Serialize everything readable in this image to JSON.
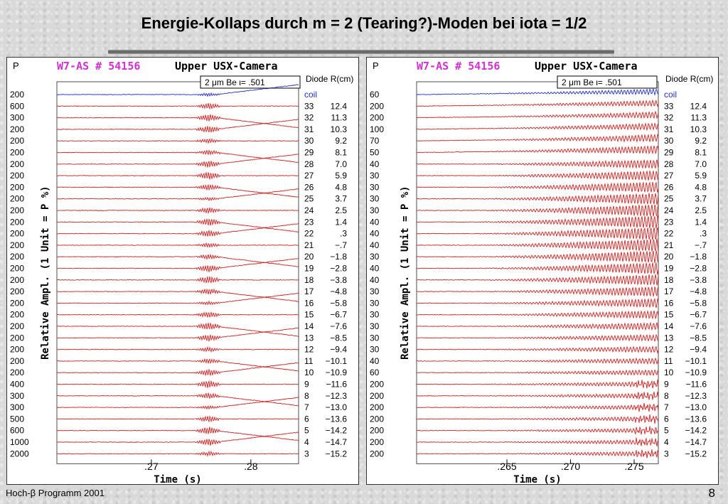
{
  "slide": {
    "title": "Energie-Kollaps durch m = 2 (Tearing?)-Moden bei iota = 1/2",
    "footer": "Hoch-β Programm 2001",
    "page_number": "8"
  },
  "colors": {
    "trace": "#d42020",
    "coil_trace": "#1f2fd0",
    "header_blue": "#1f2fd0",
    "magenta": "#d62fd6"
  },
  "chart_data": [
    {
      "type": "line",
      "header_shot": "W7-AS # 54156",
      "header_camera": "Upper USX-Camera",
      "filter_label": "2  μm Be ι= .501",
      "p_label": "P",
      "diode_header": "Diode R(cm)",
      "ylabel": "Relative Ampl. (1 Unit = P %)",
      "xlabel": "Time (s)",
      "xlim": [
        0.2605,
        0.2848
      ],
      "ticks": [
        0.27,
        0.28
      ],
      "tick_labels": [
        ".27",
        ".28"
      ],
      "event_time": 0.2765,
      "rows": [
        {
          "p": "200",
          "diode": "coil",
          "r": ""
        },
        {
          "p": "600",
          "diode": "33",
          "r": "12.4"
        },
        {
          "p": "300",
          "diode": "32",
          "r": "11.3"
        },
        {
          "p": "200",
          "diode": "31",
          "r": "10.3"
        },
        {
          "p": "200",
          "diode": "30",
          "r": "9.2"
        },
        {
          "p": "200",
          "diode": "29",
          "r": "8.1"
        },
        {
          "p": "200",
          "diode": "28",
          "r": "7.0"
        },
        {
          "p": "200",
          "diode": "27",
          "r": "5.9"
        },
        {
          "p": "200",
          "diode": "26",
          "r": "4.8"
        },
        {
          "p": "200",
          "diode": "25",
          "r": "3.7"
        },
        {
          "p": "200",
          "diode": "24",
          "r": "2.5"
        },
        {
          "p": "200",
          "diode": "23",
          "r": "1.4"
        },
        {
          "p": "200",
          "diode": "22",
          "r": ".3"
        },
        {
          "p": "200",
          "diode": "21",
          "r": "−.7"
        },
        {
          "p": "200",
          "diode": "20",
          "r": "−1.8"
        },
        {
          "p": "200",
          "diode": "19",
          "r": "−2.8"
        },
        {
          "p": "200",
          "diode": "18",
          "r": "−3.8"
        },
        {
          "p": "200",
          "diode": "17",
          "r": "−4.8"
        },
        {
          "p": "200",
          "diode": "16",
          "r": "−5.8"
        },
        {
          "p": "200",
          "diode": "15",
          "r": "−6.7"
        },
        {
          "p": "200",
          "diode": "14",
          "r": "−7.6"
        },
        {
          "p": "200",
          "diode": "13",
          "r": "−8.5"
        },
        {
          "p": "200",
          "diode": "12",
          "r": "−9.4"
        },
        {
          "p": "200",
          "diode": "11",
          "r": "−10.1"
        },
        {
          "p": "200",
          "diode": "10",
          "r": "−10.9"
        },
        {
          "p": "400",
          "diode": "9",
          "r": "−11.6"
        },
        {
          "p": "300",
          "diode": "8",
          "r": "−12.3"
        },
        {
          "p": "300",
          "diode": "7",
          "r": "−13.0"
        },
        {
          "p": "500",
          "diode": "6",
          "r": "−13.6"
        },
        {
          "p": "600",
          "diode": "5",
          "r": "−14.2"
        },
        {
          "p": "1000",
          "diode": "4",
          "r": "−14.7"
        },
        {
          "p": "2000",
          "diode": "3",
          "r": "−15.2"
        }
      ]
    },
    {
      "type": "line",
      "header_shot": "W7-AS # 54156",
      "header_camera": "Upper USX-Camera",
      "filter_label": "2  μm Be ι= .501",
      "p_label": "P",
      "diode_header": "Diode R(cm)",
      "ylabel": "Relative Ampl. (1 Unit = P %)",
      "xlabel": "Time (s)",
      "xlim": [
        0.2579,
        0.2769
      ],
      "ticks": [
        0.265,
        0.27,
        0.275
      ],
      "tick_labels": [
        ".265",
        ".270",
        ".275"
      ],
      "event_time": 0.2765,
      "rows": [
        {
          "p": "60",
          "diode": "coil",
          "r": ""
        },
        {
          "p": "200",
          "diode": "33",
          "r": "12.4"
        },
        {
          "p": "200",
          "diode": "32",
          "r": "11.3"
        },
        {
          "p": "100",
          "diode": "31",
          "r": "10.3"
        },
        {
          "p": "70",
          "diode": "30",
          "r": "9.2"
        },
        {
          "p": "50",
          "diode": "29",
          "r": "8.1"
        },
        {
          "p": "40",
          "diode": "28",
          "r": "7.0"
        },
        {
          "p": "30",
          "diode": "27",
          "r": "5.9"
        },
        {
          "p": "30",
          "diode": "26",
          "r": "4.8"
        },
        {
          "p": "30",
          "diode": "25",
          "r": "3.7"
        },
        {
          "p": "30",
          "diode": "24",
          "r": "2.5"
        },
        {
          "p": "40",
          "diode": "23",
          "r": "1.4"
        },
        {
          "p": "40",
          "diode": "22",
          "r": ".3"
        },
        {
          "p": "40",
          "diode": "21",
          "r": "−.7"
        },
        {
          "p": "30",
          "diode": "20",
          "r": "−1.8"
        },
        {
          "p": "40",
          "diode": "19",
          "r": "−2.8"
        },
        {
          "p": "40",
          "diode": "18",
          "r": "−3.8"
        },
        {
          "p": "30",
          "diode": "17",
          "r": "−4.8"
        },
        {
          "p": "30",
          "diode": "16",
          "r": "−5.8"
        },
        {
          "p": "30",
          "diode": "15",
          "r": "−6.7"
        },
        {
          "p": "30",
          "diode": "14",
          "r": "−7.6"
        },
        {
          "p": "30",
          "diode": "13",
          "r": "−8.5"
        },
        {
          "p": "30",
          "diode": "12",
          "r": "−9.4"
        },
        {
          "p": "40",
          "diode": "11",
          "r": "−10.1"
        },
        {
          "p": "60",
          "diode": "10",
          "r": "−10.9"
        },
        {
          "p": "200",
          "diode": "9",
          "r": "−11.6"
        },
        {
          "p": "200",
          "diode": "8",
          "r": "−12.3"
        },
        {
          "p": "200",
          "diode": "7",
          "r": "−13.0"
        },
        {
          "p": "200",
          "diode": "6",
          "r": "−13.6"
        },
        {
          "p": "200",
          "diode": "5",
          "r": "−14.2"
        },
        {
          "p": "200",
          "diode": "4",
          "r": "−14.7"
        },
        {
          "p": "200",
          "diode": "3",
          "r": "−15.2"
        }
      ]
    }
  ]
}
